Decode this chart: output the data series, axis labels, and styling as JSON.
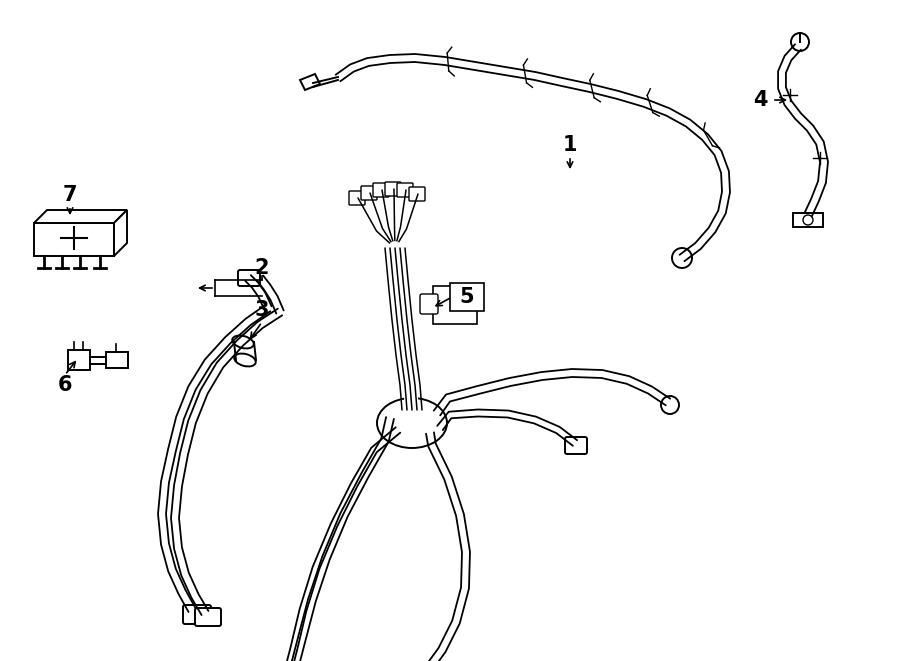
{
  "background_color": "#ffffff",
  "line_color": "#000000",
  "line_width": 1.4,
  "fig_width": 9.0,
  "fig_height": 6.61,
  "dpi": 100
}
